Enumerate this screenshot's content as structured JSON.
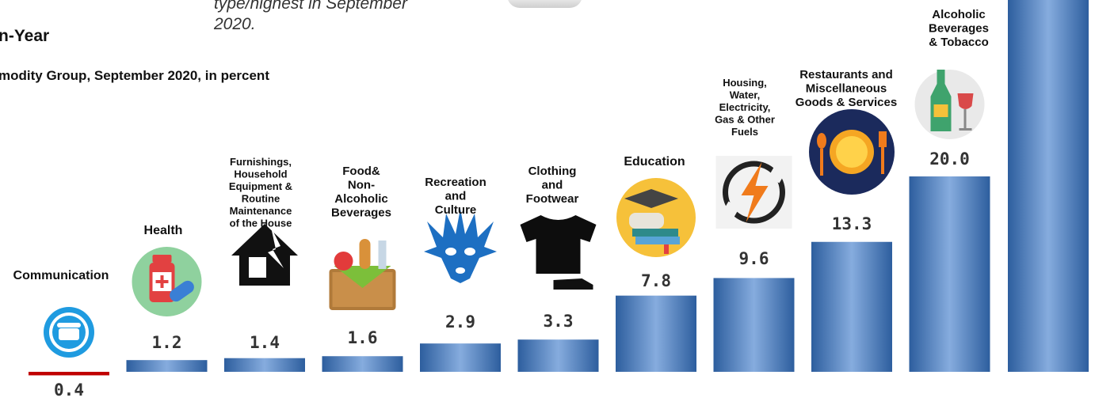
{
  "page": {
    "title": "n-Year",
    "subtitle": "modity Group, September 2020, in percent",
    "note_line1": "type/highest in September",
    "note_line2": "2020."
  },
  "chart_data": {
    "type": "bar",
    "title": "n-Year",
    "subtitle": "modity Group, September 2020, in percent",
    "categories": [
      "Communication",
      "Health",
      "Furnishings, Household Equipment & Routine Maintenance of the House",
      "Food& Non-Alcoholic Beverages",
      "Recreation and Culture",
      "Clothing and Footwear",
      "Education",
      "Housing, Water, Electricity, Gas & Other Fuels",
      "Restaurants and Miscellaneous Goods & Services",
      "Alcoholic Beverages & Tobacco",
      ""
    ],
    "category_lines": [
      [
        "Communication"
      ],
      [
        "Health"
      ],
      [
        "Furnishings,",
        "Household",
        "Equipment &",
        "Routine",
        "Maintenance",
        "of the House"
      ],
      [
        "Food&",
        "Non-",
        "Alcoholic",
        "Beverages"
      ],
      [
        "Recreation",
        "and",
        "Culture"
      ],
      [
        "Clothing",
        "and",
        "Footwear"
      ],
      [
        "Education"
      ],
      [
        "Housing,",
        "Water,",
        "Electricity,",
        "Gas & Other",
        "Fuels"
      ],
      [
        "Restaurants and",
        "Miscellaneous",
        "Goods & Services"
      ],
      [
        "Alcoholic",
        "Beverages",
        "& Tobacco"
      ],
      []
    ],
    "values": [
      -0.4,
      1.2,
      1.4,
      1.6,
      2.9,
      3.3,
      7.8,
      9.6,
      13.3,
      20.0,
      null
    ],
    "value_labels": [
      "0.4",
      "1.2",
      "1.4",
      "1.6",
      "2.9",
      "3.3",
      "7.8",
      "9.6",
      "13.3",
      "20.0",
      ""
    ],
    "icons": [
      "telephone-icon",
      "medicine-icon",
      "broken-house-icon",
      "food-basket-icon",
      "carnival-mask-icon",
      "clothing-icon",
      "graduation-books-icon",
      "lightning-icon",
      "dining-plate-icon",
      "wine-bottle-icon",
      ""
    ],
    "colors": {
      "bar": "#3d6fb0",
      "bar_light": "#7ea6dc",
      "negative": "#c00000",
      "value_text": "#333333",
      "negative_text": "#c00000"
    },
    "xlabel": "",
    "ylabel": "",
    "grid": false,
    "legend": "none"
  }
}
